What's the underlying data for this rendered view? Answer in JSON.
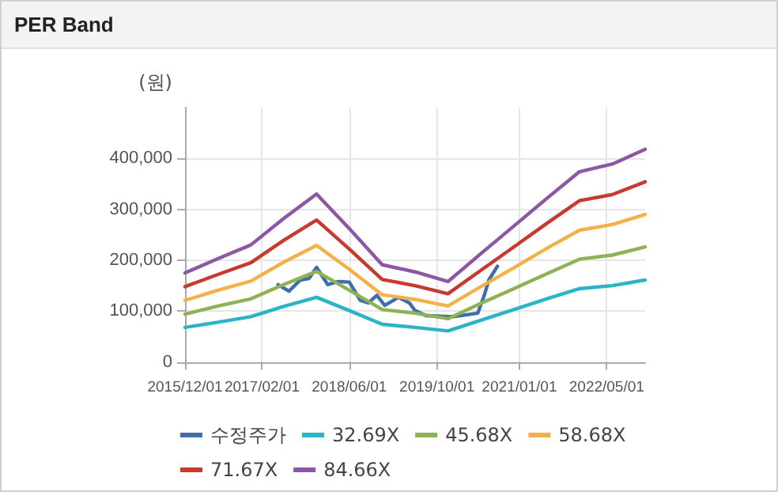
{
  "chart_data": {
    "type": "line",
    "title": "PER Band",
    "ylabel": "(원)",
    "xlim": [
      "2015-12-01",
      "2022-12-01"
    ],
    "xticks": [
      {
        "value": "2015-12-01",
        "label": "2015/12/01"
      },
      {
        "value": "2017-02-01",
        "label": "2017/02/01"
      },
      {
        "value": "2018-06-01",
        "label": "2018/06/01"
      },
      {
        "value": "2019-10-01",
        "label": "2019/10/01"
      },
      {
        "value": "2021-01-01",
        "label": "2021/01/01"
      },
      {
        "value": "2022-05-01",
        "label": "2022/05/01"
      }
    ],
    "ylim": [
      -10000,
      500000
    ],
    "yticks": [
      0,
      {
        "value": 100000,
        "label": "100,000"
      },
      {
        "value": 200000,
        "label": "200,000"
      },
      {
        "value": 300000,
        "label": "300,000"
      },
      {
        "value": 400000,
        "label": "400,000"
      }
    ],
    "grid": true,
    "legend": "bottom",
    "marker": "none",
    "line_style": "solid",
    "series": [
      {
        "name": "수정주가",
        "color": "#3f6ea8",
        "x": [
          "2017-05-01",
          "2017-07-01",
          "2017-09-01",
          "2017-10-20",
          "2017-12-01",
          "2018-02-01",
          "2018-04-01",
          "2018-06-01",
          "2018-08-01",
          "2018-09-15",
          "2018-11-01",
          "2018-12-15",
          "2019-03-01",
          "2019-05-01",
          "2019-06-01",
          "2019-08-01",
          "2020-01-01",
          "2020-05-15",
          "2020-06-20",
          "2020-07-15",
          "2020-09-01"
        ],
        "values": [
          152000,
          139000,
          161000,
          164000,
          186000,
          152000,
          158000,
          157000,
          121000,
          116000,
          131000,
          111000,
          127000,
          116000,
          101000,
          91000,
          89000,
          96000,
          131000,
          161000,
          188000
        ]
      },
      {
        "name": "32.69X",
        "color": "#2bb3c6",
        "values": [
          68000,
          78000,
          89000,
          109000,
          127000,
          101000,
          74000,
          68000,
          61000,
          82000,
          103000,
          124000,
          144000,
          150000,
          161000
        ]
      },
      {
        "name": "45.68X",
        "color": "#8db356",
        "values": [
          94000,
          110000,
          124000,
          152000,
          178000,
          141000,
          103000,
          96000,
          85000,
          115000,
          144000,
          173000,
          202000,
          210000,
          226000
        ]
      },
      {
        "name": "58.68X",
        "color": "#f2b14a",
        "values": [
          121000,
          141000,
          159000,
          196000,
          229000,
          182000,
          132000,
          123000,
          110000,
          148000,
          185000,
          223000,
          259000,
          270000,
          290000
        ]
      },
      {
        "name": "71.67X",
        "color": "#c63a30",
        "values": [
          148000,
          172000,
          195000,
          239000,
          279000,
          222000,
          162000,
          150000,
          134000,
          180000,
          226000,
          272000,
          317000,
          329000,
          354000
        ]
      },
      {
        "name": "84.66X",
        "color": "#8c58a4",
        "values": [
          175000,
          203000,
          230000,
          282000,
          330000,
          262000,
          191000,
          177000,
          158000,
          213000,
          267000,
          321000,
          374000,
          389000,
          418000
        ]
      }
    ],
    "x": [
      "2015-12-01",
      "2016-06-01",
      "2016-12-01",
      "2017-06-01",
      "2017-12-01",
      "2018-06-01",
      "2018-12-01",
      "2019-06-01",
      "2019-12-01",
      "2020-06-01",
      "2020-12-01",
      "2021-06-01",
      "2021-12-01",
      "2022-06-01",
      "2022-12-01"
    ]
  }
}
